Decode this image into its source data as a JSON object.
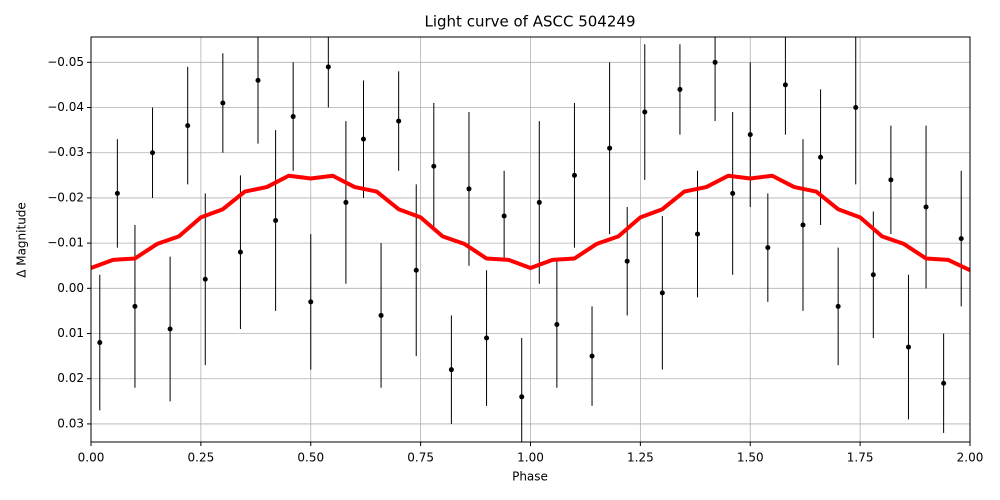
{
  "chart_data": {
    "type": "errorbar",
    "title": "Light curve of ASCC 504249",
    "x_label": "Phase",
    "y_label": "Δ Magnitude",
    "xlim": [
      0,
      2
    ],
    "ylim": [
      -0.0556,
      0.034
    ],
    "y_inverted": true,
    "grid": true,
    "xticks": [
      {
        "value": 0,
        "label": "0.00"
      },
      {
        "value": 0.25,
        "label": "0.25"
      },
      {
        "value": 0.5,
        "label": "0.50"
      },
      {
        "value": 0.75,
        "label": "0.75"
      },
      {
        "value": 1,
        "label": "1.00"
      },
      {
        "value": 1.25,
        "label": "1.25"
      },
      {
        "value": 1.5,
        "label": "1.50"
      },
      {
        "value": 1.75,
        "label": "1.75"
      },
      {
        "value": 2,
        "label": "2.00"
      }
    ],
    "yticks": [
      {
        "value": -0.05,
        "label": "−0.05"
      },
      {
        "value": -0.04,
        "label": "−0.04"
      },
      {
        "value": -0.03,
        "label": "−0.03"
      },
      {
        "value": -0.02,
        "label": "−0.02"
      },
      {
        "value": -0.01,
        "label": "−0.01"
      },
      {
        "value": 0,
        "label": "0.00"
      },
      {
        "value": 0.01,
        "label": "0.01"
      },
      {
        "value": 0.02,
        "label": "0.02"
      },
      {
        "value": 0.03,
        "label": "0.03"
      }
    ],
    "series": [
      {
        "type": "errorbar",
        "color": "#000000",
        "x": [
          0.02,
          0.06,
          0.1,
          0.14,
          0.18,
          0.22,
          0.26,
          0.3,
          0.34,
          0.38,
          0.42,
          0.46,
          0.5,
          0.54,
          0.58,
          0.62,
          0.66,
          0.7,
          0.74,
          0.78,
          0.82,
          0.86,
          0.9,
          0.94,
          0.98,
          1.02,
          1.06,
          1.1,
          1.14,
          1.18,
          1.22,
          1.26,
          1.3,
          1.34,
          1.38,
          1.42,
          1.46,
          1.5,
          1.54,
          1.58,
          1.62,
          1.66,
          1.7,
          1.74,
          1.78,
          1.82,
          1.86,
          1.9,
          1.94,
          1.98
        ],
        "values": [
          0.012,
          -0.021,
          0.004,
          -0.03,
          0.009,
          -0.036,
          -0.002,
          -0.041,
          -0.008,
          -0.046,
          -0.015,
          -0.038,
          0.003,
          -0.049,
          -0.019,
          -0.033,
          0.006,
          -0.037,
          -0.004,
          -0.027,
          0.018,
          -0.022,
          0.011,
          -0.016,
          0.024,
          -0.019,
          0.008,
          -0.025,
          0.015,
          -0.031,
          -0.006,
          -0.039,
          0.001,
          -0.044,
          -0.012,
          -0.05,
          -0.021,
          -0.034,
          -0.009,
          -0.045,
          -0.014,
          -0.029,
          0.004,
          -0.04,
          -0.003,
          -0.024,
          0.013,
          -0.018,
          0.021,
          -0.011
        ],
        "errors": [
          0.015,
          0.012,
          0.018,
          0.01,
          0.016,
          0.013,
          0.019,
          0.011,
          0.017,
          0.014,
          0.02,
          0.012,
          0.015,
          0.009,
          0.018,
          0.013,
          0.016,
          0.011,
          0.019,
          0.014,
          0.012,
          0.017,
          0.015,
          0.01,
          0.013,
          0.018,
          0.014,
          0.016,
          0.011,
          0.019,
          0.012,
          0.015,
          0.017,
          0.01,
          0.014,
          0.013,
          0.018,
          0.016,
          0.012,
          0.011,
          0.019,
          0.015,
          0.013,
          0.017,
          0.014,
          0.012,
          0.016,
          0.018,
          0.011,
          0.015
        ]
      },
      {
        "type": "line",
        "color": "#ff0000",
        "x": [
          0,
          0.05,
          0.1,
          0.15,
          0.2,
          0.25,
          0.3,
          0.35,
          0.4,
          0.45,
          0.5,
          0.55,
          0.6,
          0.65,
          0.7,
          0.75,
          0.8,
          0.85,
          0.9,
          0.95,
          1,
          1.05,
          1.1,
          1.15,
          1.2,
          1.25,
          1.3,
          1.35,
          1.4,
          1.45,
          1.5,
          1.55,
          1.6,
          1.65,
          1.7,
          1.75,
          1.8,
          1.85,
          1.9,
          1.95,
          2
        ],
        "values": [
          -0.0045,
          -0.0063,
          -0.0066,
          -0.0098,
          -0.0115,
          -0.0157,
          -0.0175,
          -0.0214,
          -0.0224,
          -0.0249,
          -0.0243,
          -0.0249,
          -0.0224,
          -0.0214,
          -0.0175,
          -0.0157,
          -0.0115,
          -0.0098,
          -0.0066,
          -0.0063,
          -0.0045,
          -0.0063,
          -0.0066,
          -0.0098,
          -0.0115,
          -0.0157,
          -0.0175,
          -0.0214,
          -0.0224,
          -0.0249,
          -0.0243,
          -0.0249,
          -0.0224,
          -0.0214,
          -0.0175,
          -0.0157,
          -0.0115,
          -0.0098,
          -0.0066,
          -0.0063,
          -0.004
        ]
      }
    ]
  }
}
